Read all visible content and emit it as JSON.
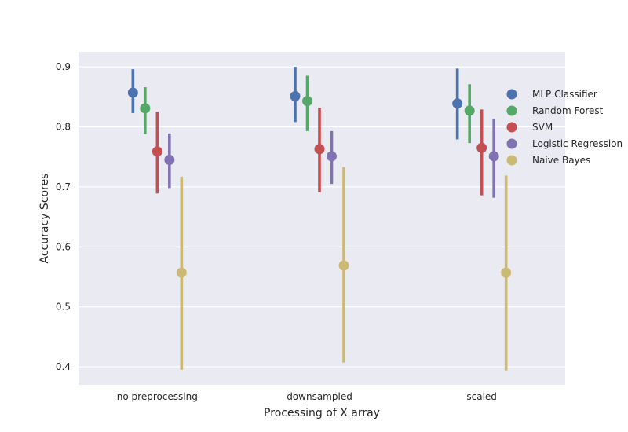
{
  "chart_data": {
    "type": "scatter",
    "xlabel": "Processing of X array",
    "ylabel": "Accuracy Scores",
    "categories": [
      "no preprocessing",
      "downsampled",
      "scaled"
    ],
    "ylim": [
      0.37,
      0.925
    ],
    "yticks": [
      0.4,
      0.5,
      0.6,
      0.7,
      0.8,
      0.9
    ],
    "ytick_labels": [
      "0.4",
      "0.5",
      "0.6",
      "0.7",
      "0.8",
      "0.9"
    ],
    "grid": true,
    "legend_position": "right",
    "series": [
      {
        "name": "MLP Classifier",
        "color": "#4c72b0",
        "values": [
          0.857,
          0.851,
          0.839
        ],
        "ci_low": [
          0.823,
          0.808,
          0.779
        ],
        "ci_high": [
          0.896,
          0.9,
          0.897
        ]
      },
      {
        "name": "Random Forest",
        "color": "#55a868",
        "values": [
          0.831,
          0.843,
          0.827
        ],
        "ci_low": [
          0.788,
          0.793,
          0.773
        ],
        "ci_high": [
          0.866,
          0.885,
          0.871
        ]
      },
      {
        "name": "SVM",
        "color": "#c44e52",
        "values": [
          0.759,
          0.763,
          0.765
        ],
        "ci_low": [
          0.689,
          0.691,
          0.686
        ],
        "ci_high": [
          0.825,
          0.832,
          0.829
        ]
      },
      {
        "name": "Logistic Regression",
        "color": "#8172b2",
        "values": [
          0.745,
          0.751,
          0.751
        ],
        "ci_low": [
          0.698,
          0.705,
          0.682
        ],
        "ci_high": [
          0.789,
          0.793,
          0.813
        ]
      },
      {
        "name": "Naive Bayes",
        "color": "#ccb974",
        "values": [
          0.557,
          0.569,
          0.557
        ],
        "ci_low": [
          0.395,
          0.407,
          0.394
        ],
        "ci_high": [
          0.717,
          0.733,
          0.719
        ]
      }
    ]
  }
}
